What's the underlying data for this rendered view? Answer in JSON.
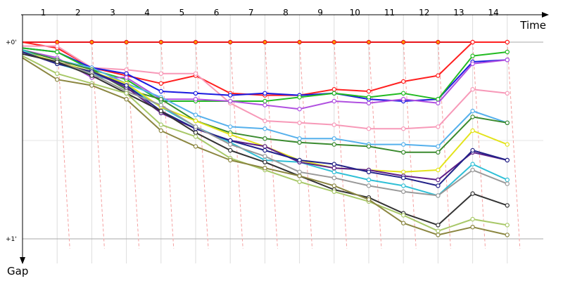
{
  "chart_data": {
    "type": "line",
    "title": "",
    "xlabel": "Time",
    "ylabel": "Gap",
    "ylim": [
      0,
      1.05
    ],
    "y_ticks": [
      {
        "label": "+0'",
        "value": 0
      },
      {
        "label": "+1'",
        "value": 1
      }
    ],
    "x": [
      0,
      1,
      2,
      3,
      4,
      5,
      6,
      7,
      8,
      9,
      10,
      11,
      12,
      13,
      14
    ],
    "x_tick_labels": [
      "1",
      "2",
      "3",
      "4",
      "5",
      "6",
      "7",
      "8",
      "9",
      "10",
      "11",
      "12",
      "13",
      "14"
    ],
    "grid": true,
    "legend": "none",
    "marker_colors": {
      "leader": "#ff9900"
    },
    "series": [
      {
        "color": "#e8151b",
        "values": [
          0.0,
          0.0,
          0.0,
          0.0,
          0.0,
          0.0,
          0.0,
          0.0,
          0.0,
          0.0,
          0.0,
          0.0,
          0.0,
          0.0,
          0.0
        ]
      },
      {
        "color": "#ff2020",
        "values": [
          0.0,
          0.03,
          0.13,
          0.17,
          0.21,
          0.17,
          0.26,
          0.27,
          0.27,
          0.24,
          0.25,
          0.2,
          0.17,
          0.0,
          0.0
        ]
      },
      {
        "color": "#f799b8",
        "values": [
          0.02,
          0.02,
          0.13,
          0.14,
          0.16,
          0.16,
          0.31,
          0.4,
          0.41,
          0.42,
          0.44,
          0.44,
          0.43,
          0.24,
          0.26
        ]
      },
      {
        "color": "#1a1ae0",
        "values": [
          0.03,
          0.05,
          0.13,
          0.16,
          0.25,
          0.26,
          0.27,
          0.26,
          0.27,
          0.26,
          0.29,
          0.3,
          0.29,
          0.1,
          0.09
        ]
      },
      {
        "color": "#22bb22",
        "values": [
          0.03,
          0.05,
          0.14,
          0.19,
          0.3,
          0.3,
          0.3,
          0.3,
          0.28,
          0.26,
          0.28,
          0.26,
          0.29,
          0.07,
          0.05
        ]
      },
      {
        "color": "#b050e0",
        "values": [
          0.04,
          0.08,
          0.18,
          0.18,
          0.29,
          0.29,
          0.3,
          0.32,
          0.34,
          0.3,
          0.31,
          0.29,
          0.31,
          0.11,
          0.09
        ]
      },
      {
        "color": "#55b0ec",
        "values": [
          0.04,
          0.09,
          0.13,
          0.21,
          0.28,
          0.37,
          0.43,
          0.44,
          0.49,
          0.49,
          0.52,
          0.52,
          0.53,
          0.35,
          0.41
        ]
      },
      {
        "color": "#3a8a2e",
        "values": [
          0.04,
          0.09,
          0.14,
          0.24,
          0.29,
          0.4,
          0.46,
          0.49,
          0.51,
          0.52,
          0.53,
          0.56,
          0.56,
          0.38,
          0.41
        ]
      },
      {
        "color": "#2fbfd6",
        "values": [
          0.04,
          0.11,
          0.16,
          0.22,
          0.33,
          0.43,
          0.51,
          0.6,
          0.61,
          0.66,
          0.7,
          0.73,
          0.78,
          0.62,
          0.7
        ]
      },
      {
        "color": "#e3e31a",
        "values": [
          0.05,
          0.1,
          0.15,
          0.21,
          0.33,
          0.4,
          0.47,
          0.53,
          0.6,
          0.64,
          0.65,
          0.66,
          0.65,
          0.45,
          0.52
        ]
      },
      {
        "color": "#5c1e88",
        "values": [
          0.05,
          0.11,
          0.15,
          0.23,
          0.36,
          0.44,
          0.5,
          0.53,
          0.61,
          0.64,
          0.65,
          0.68,
          0.7,
          0.56,
          0.6
        ]
      },
      {
        "color": "#222288",
        "values": [
          0.05,
          0.11,
          0.15,
          0.22,
          0.35,
          0.44,
          0.5,
          0.55,
          0.6,
          0.62,
          0.66,
          0.69,
          0.73,
          0.55,
          0.6
        ]
      },
      {
        "color": "#999999",
        "values": [
          0.06,
          0.1,
          0.16,
          0.25,
          0.32,
          0.43,
          0.52,
          0.58,
          0.66,
          0.69,
          0.73,
          0.76,
          0.78,
          0.65,
          0.72
        ]
      },
      {
        "color": "#333333",
        "values": [
          0.06,
          0.1,
          0.17,
          0.26,
          0.35,
          0.46,
          0.55,
          0.61,
          0.68,
          0.75,
          0.79,
          0.87,
          0.93,
          0.77,
          0.83
        ]
      },
      {
        "color": "#a8c868",
        "values": [
          0.07,
          0.16,
          0.21,
          0.26,
          0.42,
          0.48,
          0.59,
          0.65,
          0.71,
          0.76,
          0.81,
          0.88,
          0.96,
          0.9,
          0.93
        ]
      },
      {
        "color": "#8b8640",
        "values": [
          0.08,
          0.19,
          0.22,
          0.29,
          0.45,
          0.53,
          0.6,
          0.64,
          0.68,
          0.73,
          0.8,
          0.92,
          0.98,
          0.94,
          0.98
        ]
      }
    ]
  }
}
